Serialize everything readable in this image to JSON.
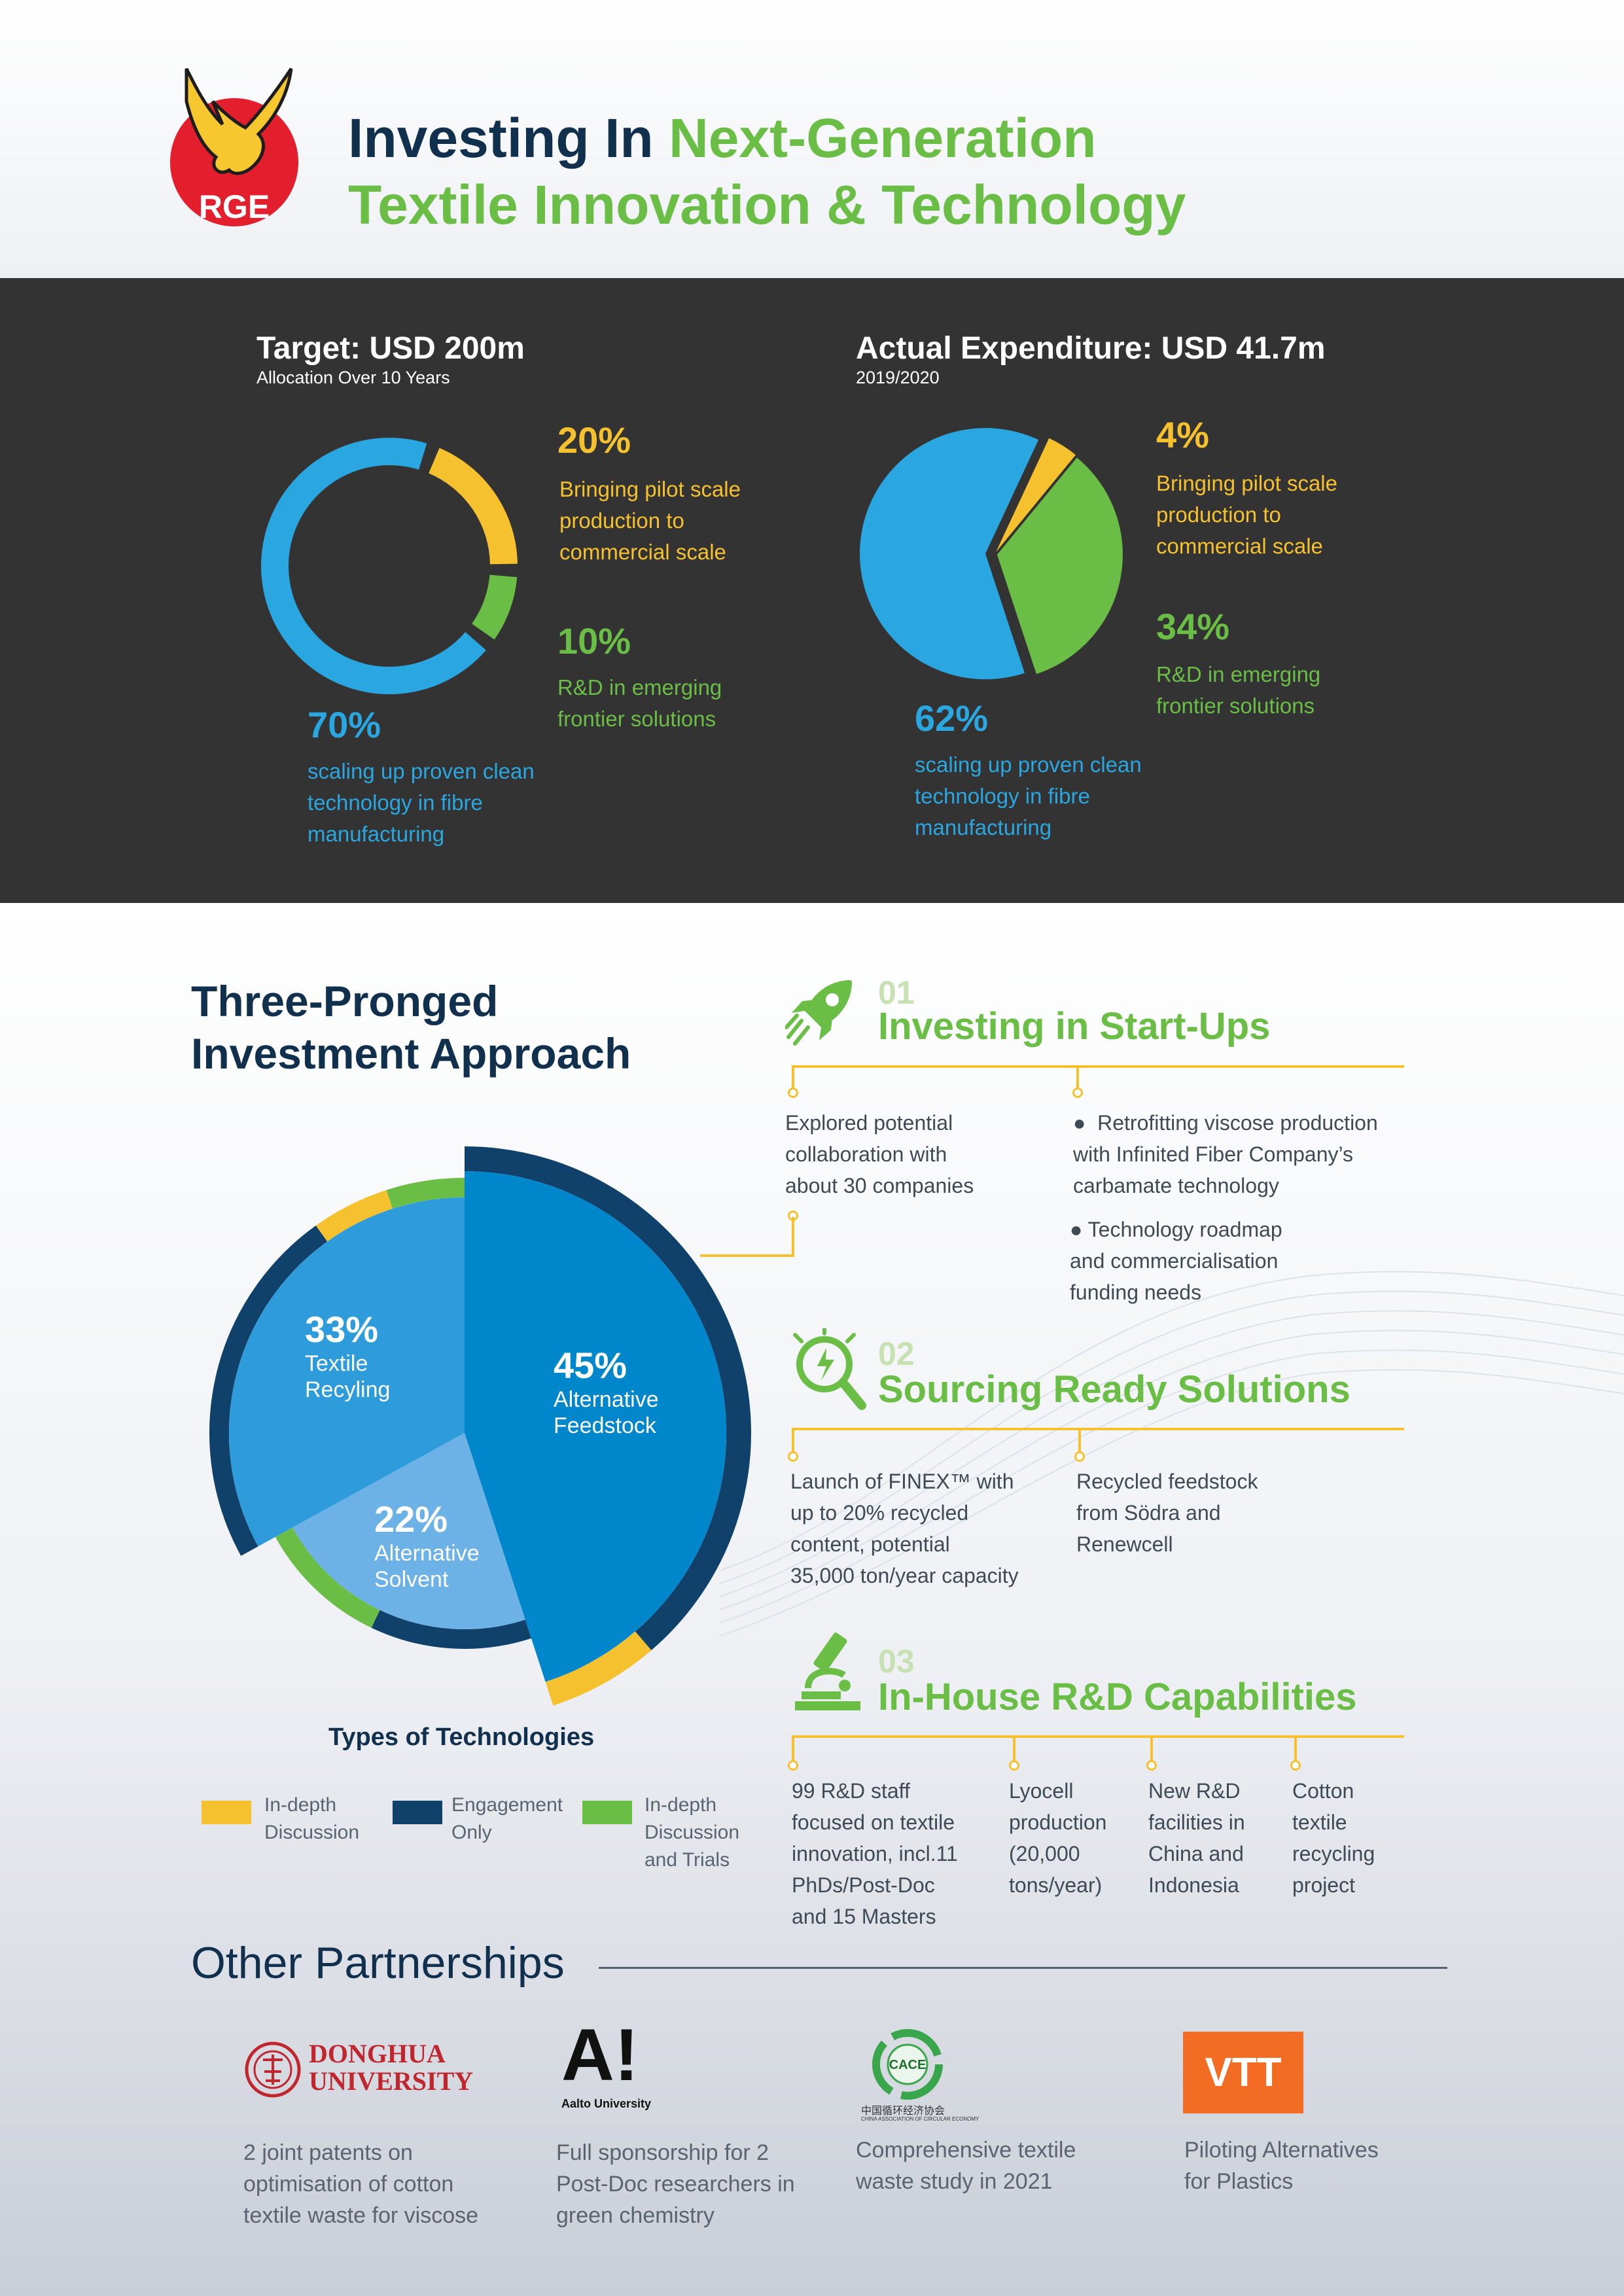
{
  "header": {
    "logo_text": "RGE",
    "title_line1_dark": "Investing In ",
    "title_line1_green": "Next-Generation",
    "title_line2_green": "Textile Innovation & Technology"
  },
  "colors": {
    "yellow": "#f6c12e",
    "green": "#6abd45",
    "blue": "#2aa7e0",
    "navy": "#10304d",
    "pie_blue": "#0087cb",
    "pie_light": "#2e9cdb",
    "pie_pale": "#6db2e6",
    "dark_bg": "#333333"
  },
  "target": {
    "title": "Target: USD 200m",
    "subtitle": "Allocation Over 10 Years",
    "items": [
      {
        "pct": "20%",
        "label": "Bringing pilot scale production to commercial scale"
      },
      {
        "pct": "10%",
        "label": "R&D in emerging frontier solutions"
      },
      {
        "pct": "70%",
        "label": "scaling up proven clean technology in fibre manufacturing"
      }
    ]
  },
  "actual": {
    "title": "Actual Expenditure: USD 41.7m",
    "subtitle": "2019/2020",
    "items": [
      {
        "pct": "4%",
        "label": "Bringing pilot scale production to commercial scale"
      },
      {
        "pct": "34%",
        "label": "R&D in emerging frontier solutions"
      },
      {
        "pct": "62%",
        "label": "scaling up proven clean technology in fibre manufacturing"
      }
    ]
  },
  "approach": {
    "title_line1": "Three-Pronged",
    "title_line2": "Investment Approach",
    "chart_title": "Types of Technologies",
    "slices": [
      {
        "pct": "45%",
        "name_line1": "Alternative",
        "name_line2": "Feedstock"
      },
      {
        "pct": "22%",
        "name_line1": "Alternative",
        "name_line2": "Solvent"
      },
      {
        "pct": "33%",
        "name_line1": "Textile",
        "name_line2": "Recyling"
      }
    ],
    "legend": [
      {
        "line1": "In-depth",
        "line2": "Discussion",
        "line3": "",
        "color": "#f6c12e"
      },
      {
        "line1": "Engagement",
        "line2": "Only",
        "line3": "",
        "color": "#10416b"
      },
      {
        "line1": "In-depth",
        "line2": "Discussion",
        "line3": "and Trials",
        "color": "#6abd45"
      }
    ]
  },
  "prongs": [
    {
      "num": "01",
      "title": "Investing in Start-Ups",
      "icon": "rocket-icon",
      "col1": [
        "Explored potential",
        "collaboration with",
        "about 30 companies"
      ],
      "bullet1": [
        "Retrofitting viscose production",
        "with Infinited Fiber Company’s",
        "carbamate technology"
      ],
      "bullet2": [
        "Technology roadmap",
        "and commercialisation",
        "funding needs"
      ]
    },
    {
      "num": "02",
      "title": "Sourcing Ready Solutions",
      "icon": "lightbulb-magnifier-icon",
      "col1": [
        "Launch of FINEX™ with",
        "up to 20% recycled",
        "content, potential",
        "35,000 ton/year capacity"
      ],
      "col2": [
        "Recycled feedstock",
        "from Södra and",
        "Renewcell"
      ]
    },
    {
      "num": "03",
      "title": "In-House R&D Capabilities",
      "icon": "microscope-icon",
      "col1": [
        "99 R&D staff",
        "focused on textile",
        "innovation, incl.11",
        "PhDs/Post-Doc",
        "and 15 Masters"
      ],
      "col2": [
        "Lyocell",
        "production",
        "(20,000",
        "tons/year)"
      ],
      "col3": [
        "New R&D",
        "facilities in",
        "China and",
        "Indonesia"
      ],
      "col4": [
        "Cotton",
        "textile",
        "recycling",
        "project"
      ]
    }
  ],
  "partners": {
    "title": "Other Partnerships",
    "items": [
      {
        "logo_line1": "DONGHUA",
        "logo_line2": "UNIVERSITY",
        "text": [
          "2 joint patents on",
          "optimisation of cotton",
          "textile waste for viscose"
        ]
      },
      {
        "logo_main": "A!",
        "logo_sub": "Aalto University",
        "text": [
          "Full sponsorship for 2",
          "Post-Doc researchers in",
          "green chemistry"
        ]
      },
      {
        "logo_main": "CACE",
        "logo_sub": "中国循环经济协会",
        "logo_sub2": "CHINA ASSOCIATION OF CIRCULAR ECONOMY",
        "text": [
          "Comprehensive textile",
          "waste study in 2021"
        ]
      },
      {
        "logo_main": "VTT",
        "text": [
          "Piloting Alternatives",
          "for Plastics"
        ]
      }
    ]
  },
  "chart_data": [
    {
      "type": "pie",
      "title": "Target: USD 200m",
      "categories": [
        "Bringing pilot scale production to commercial scale",
        "R&D in emerging frontier solutions",
        "scaling up proven clean technology in fibre manufacturing"
      ],
      "values": [
        20,
        10,
        70
      ],
      "colors": [
        "#f6c12e",
        "#6abd45",
        "#2aa7e0"
      ]
    },
    {
      "type": "pie",
      "title": "Actual Expenditure: USD 41.7m",
      "categories": [
        "Bringing pilot scale production to commercial scale",
        "R&D in emerging frontier solutions",
        "scaling up proven clean technology in fibre manufacturing"
      ],
      "values": [
        4,
        34,
        62
      ],
      "colors": [
        "#f6c12e",
        "#6abd45",
        "#2aa7e0"
      ]
    },
    {
      "type": "pie",
      "title": "Types of Technologies",
      "categories": [
        "Alternative Feedstock",
        "Alternative Solvent",
        "Textile Recyling"
      ],
      "values": [
        45,
        22,
        33
      ],
      "colors": [
        "#0087cb",
        "#6db2e6",
        "#2e9cdb"
      ]
    }
  ]
}
